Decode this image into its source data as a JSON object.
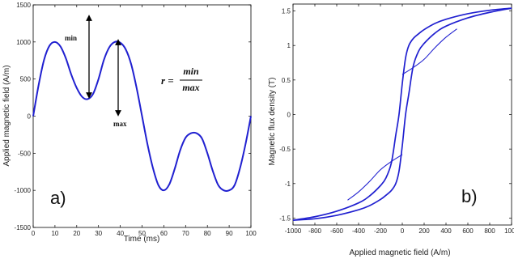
{
  "chart_data": [
    {
      "type": "line",
      "panel_label": "a)",
      "xlabel": "Time (ms)",
      "ylabel": "Applied magnetic field (A/m)",
      "xlim": [
        0,
        100
      ],
      "ylim": [
        -1500,
        1500
      ],
      "xticks": [
        "0",
        "10",
        "20",
        "30",
        "40",
        "50",
        "60",
        "70",
        "80",
        "90",
        "100"
      ],
      "yticks": [
        "1500",
        "1000",
        "500",
        "0",
        "-500",
        "-1000",
        "-1500"
      ],
      "series_color": "#2020d0",
      "series": [
        {
          "x": [
            0,
            2.5,
            5,
            7.5,
            10,
            12.5,
            15,
            17.5,
            20,
            22.5,
            25,
            27.5,
            30,
            32.5,
            35,
            37.5,
            40,
            42.5,
            45,
            47.5,
            50,
            52.5,
            55,
            57.5,
            60,
            62.5,
            65,
            67.5,
            70,
            72.5,
            75,
            77.5,
            80,
            82.5,
            85,
            87.5,
            90,
            92.5,
            95,
            97.5,
            100
          ],
          "values": [
            0,
            420,
            760,
            950,
            1000,
            940,
            780,
            560,
            380,
            260,
            230,
            300,
            500,
            760,
            930,
            1000,
            990,
            900,
            700,
            380,
            0,
            -380,
            -700,
            -930,
            -1000,
            -920,
            -710,
            -460,
            -290,
            -230,
            -230,
            -300,
            -500,
            -740,
            -930,
            -1000,
            -1000,
            -930,
            -700,
            -380,
            0
          ]
        }
      ],
      "annotations": {
        "min_label": "min",
        "max_label": "max",
        "formula_lhs": "r =",
        "formula_num": "min",
        "formula_den": "max"
      }
    },
    {
      "type": "line",
      "panel_label": "b)",
      "xlabel": "Applied magnetic field (A/m)",
      "ylabel": "Magnetic flux density (T)",
      "xlim": [
        -1000,
        1000
      ],
      "ylim": [
        -1.6,
        1.6
      ],
      "xticks": [
        "-1000",
        "-800",
        "-600",
        "-400",
        "-200",
        "0",
        "200",
        "400",
        "600",
        "800",
        "1000"
      ],
      "yticks": [
        "1.5",
        "1",
        "0.5",
        "0",
        "-0.5",
        "-1",
        "-1.5"
      ],
      "series_color": "#2020d0",
      "series": [
        {
          "x": [
            -1000,
            -800,
            -600,
            -400,
            -300,
            -200,
            -150,
            -100,
            -60,
            -30,
            0,
            30,
            60,
            100,
            150,
            200,
            300,
            400,
            600,
            800,
            1000
          ],
          "values": [
            -1.53,
            -1.48,
            -1.4,
            -1.28,
            -1.18,
            -1.03,
            -0.92,
            -0.7,
            -0.3,
            0,
            0.45,
            0.82,
            1.0,
            1.1,
            1.17,
            1.23,
            1.32,
            1.38,
            1.46,
            1.51,
            1.54
          ]
        },
        {
          "x": [
            1000,
            800,
            600,
            400,
            300,
            200,
            150,
            100,
            60,
            30,
            0,
            -30,
            -60,
            -100,
            -150,
            -200,
            -300,
            -400,
            -600,
            -800,
            -1000
          ],
          "values": [
            1.54,
            1.48,
            1.4,
            1.28,
            1.18,
            1.03,
            0.92,
            0.7,
            0.3,
            0,
            -0.45,
            -0.82,
            -1.0,
            -1.1,
            -1.17,
            -1.23,
            -1.32,
            -1.38,
            -1.46,
            -1.51,
            -1.53
          ]
        },
        {
          "x": [
            0,
            100,
            200,
            300,
            400,
            500
          ],
          "values": [
            0.58,
            0.68,
            0.8,
            0.97,
            1.12,
            1.24
          ]
        },
        {
          "x": [
            0,
            -100,
            -200,
            -300,
            -400,
            -500
          ],
          "values": [
            -0.58,
            -0.68,
            -0.8,
            -0.97,
            -1.12,
            -1.24
          ]
        }
      ]
    }
  ]
}
